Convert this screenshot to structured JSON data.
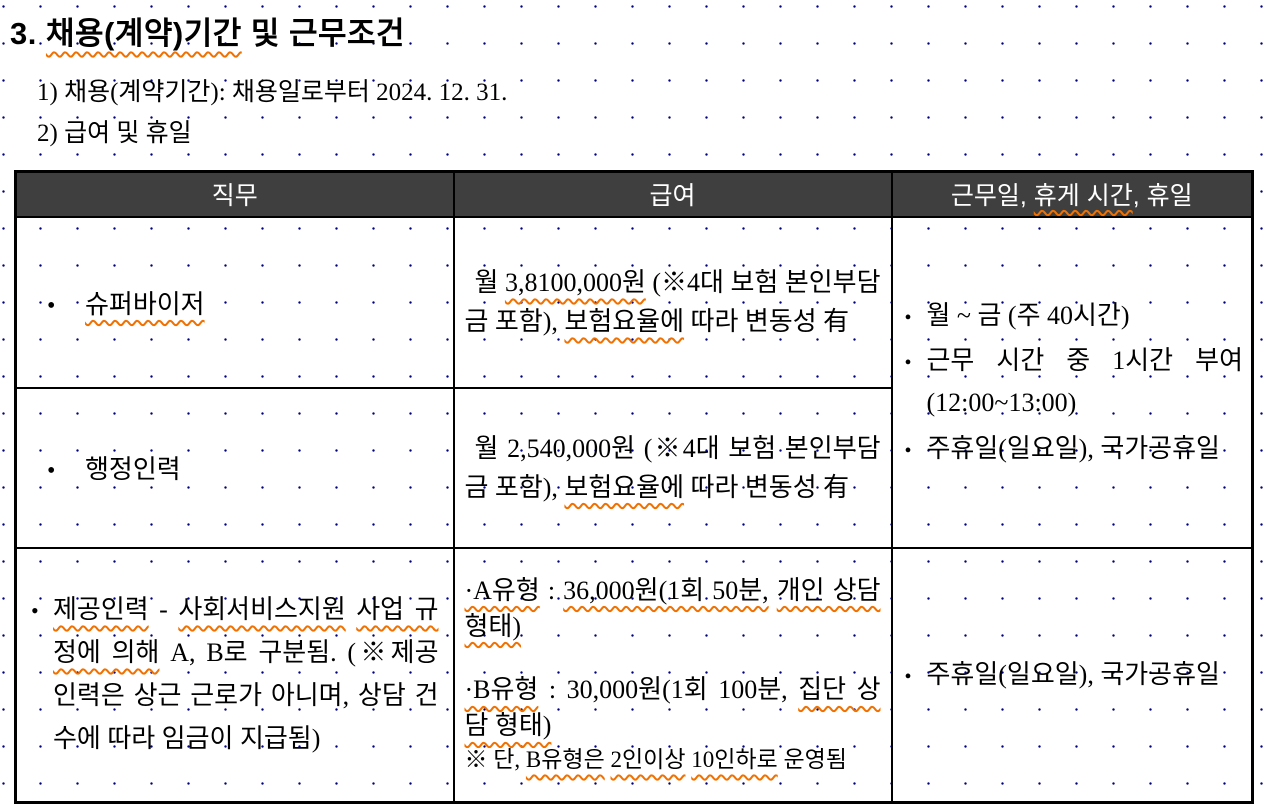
{
  "doc": {
    "title": {
      "segments": [
        {
          "t": "3. "
        },
        {
          "t": "채용(계약)기간",
          "u": true
        },
        {
          "t": " 및 근무조건"
        }
      ]
    },
    "intro": [
      {
        "segments": [
          {
            "t": "1) 채용(계약기간): 채용일로부터 2024. 12. 31."
          }
        ]
      },
      {
        "segments": [
          {
            "t": "2) 급여 및 휴일"
          }
        ]
      }
    ]
  },
  "table": {
    "headers": {
      "job": {
        "segments": [
          {
            "t": "직무"
          }
        ]
      },
      "salary": {
        "segments": [
          {
            "t": "급여"
          }
        ]
      },
      "schedule": {
        "segments": [
          {
            "t": "근무일, "
          },
          {
            "t": "휴게 시간",
            "u": true
          },
          {
            "t": ", 휴일"
          }
        ]
      }
    },
    "rows": {
      "supervisor": {
        "bullet": "•",
        "job": {
          "segments": [
            {
              "t": "슈퍼바이저",
              "u": true
            }
          ]
        },
        "salary": {
          "segments": [
            {
              "t": "월 "
            },
            {
              "t": "3,8100,000원",
              "u": true
            },
            {
              "t": " (※4대 보험 본인부담금 포함), "
            },
            {
              "t": "보험요율에",
              "u": true
            },
            {
              "t": " 따라 변동성 有"
            }
          ]
        }
      },
      "admin": {
        "bullet": "•",
        "job": {
          "segments": [
            {
              "t": "행정인력"
            }
          ]
        },
        "salary": {
          "segments": [
            {
              "t": "월 2,540,000원 (※4대 보험 본인부담금 포함), "
            },
            {
              "t": "보험요율에",
              "u": true
            },
            {
              "t": " 따라 변동성 有"
            }
          ]
        }
      },
      "provider": {
        "bullet": "•",
        "job": {
          "segments": [
            {
              "t": "제공인력",
              "u": true
            },
            {
              "t": " - "
            },
            {
              "t": "사회서비스지원",
              "u": true
            },
            {
              "t": " "
            },
            {
              "t": "사업 규정에 의해",
              "u": true
            },
            {
              "t": " A, B로 구분됨. (※제공 인력은 상근 근로가 아니며, 상담 건수에 따라 임금이 지급됨)"
            }
          ]
        },
        "salary_paragraphs": [
          {
            "segments": [
              {
                "t": "·A유형",
                "u": true
              },
              {
                "t": " : "
              },
              {
                "t": "36,000원(1회 50분,",
                "u": true
              },
              {
                "t": " "
              },
              {
                "t": "개인 상담 형태)",
                "u": true
              }
            ]
          },
          {
            "segments": [
              {
                "t": "·B유형",
                "u": true
              },
              {
                "t": " : 30,000원(1회 100분, "
              },
              {
                "t": "집단 상담 형태)",
                "u": true
              }
            ]
          },
          {
            "segments": [
              {
                "t": "※ 단, "
              },
              {
                "t": "B유형은",
                "u": true
              },
              {
                "t": " "
              },
              {
                "t": "2인이상",
                "u": true
              },
              {
                "t": " "
              },
              {
                "t": "10인하로",
                "u": true
              },
              {
                "t": " 운영됨"
              }
            ]
          }
        ]
      }
    },
    "merged_schedule": {
      "items": [
        {
          "bullet": "•",
          "segments": [
            {
              "t": "월 ~ 금 (주 40시간)"
            }
          ]
        },
        {
          "bullet": "•",
          "segments": [
            {
              "t": "근무 시간 중 1시간 부여(12:00~13:00)"
            }
          ]
        },
        {
          "bullet": "•",
          "segments": [
            {
              "t": "주휴일(일요일), 국가공휴일"
            }
          ]
        }
      ]
    },
    "provider_schedule": {
      "items": [
        {
          "bullet": "•",
          "segments": [
            {
              "t": "주휴일(일요일), 국가공휴일"
            }
          ]
        }
      ]
    }
  },
  "colors": {
    "header_bg": "#3f3f3f",
    "header_text": "#ffffff",
    "squiggle": "#f07000",
    "grid_dot": "#000080",
    "border": "#000000"
  }
}
